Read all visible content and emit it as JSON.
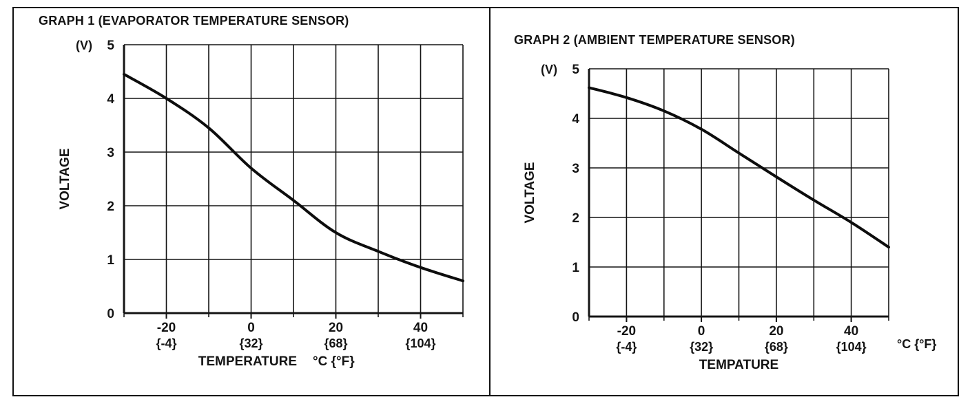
{
  "page": {
    "background": "#ffffff",
    "ink_color": "#141414"
  },
  "panels": [
    {
      "title": "GRAPH 1 (EVAPORATOR TEMPERATURE SENSOR)"
    },
    {
      "title": "GRAPH 2 (AMBIENT TEMPERATURE SENSOR)"
    }
  ],
  "chart_data": [
    {
      "type": "line",
      "title": "GRAPH 1 (EVAPORATOR TEMPERATURE SENSOR)",
      "ylabel": "VOLTAGE",
      "y_unit": "(V)",
      "xlabel": "TEMPERATURE",
      "x_unit": "°C {°F}",
      "unit_position": "label-row",
      "xlim": [
        -30,
        50
      ],
      "ylim": [
        0,
        5
      ],
      "x_grid_step": 10,
      "y_grid_step": 1,
      "grid": true,
      "legend": false,
      "x_ticks": [
        {
          "c": "-20",
          "f": "{-4}"
        },
        {
          "c": "0",
          "f": "{32}"
        },
        {
          "c": "20",
          "f": "{68}"
        },
        {
          "c": "40",
          "f": "{104}"
        }
      ],
      "y_ticks": [
        "0",
        "1",
        "2",
        "3",
        "4",
        "5"
      ],
      "x": [
        -30,
        -20,
        -10,
        0,
        10,
        20,
        30,
        40,
        50
      ],
      "values": [
        4.45,
        4.0,
        3.45,
        2.7,
        2.1,
        1.5,
        1.15,
        0.85,
        0.6
      ]
    },
    {
      "type": "line",
      "title": "GRAPH 2 (AMBIENT TEMPERATURE SENSOR)",
      "ylabel": "VOLTAGE",
      "y_unit": "(V)",
      "xlabel": "TEMPATURE",
      "x_unit": "°C {°F}",
      "unit_position": "axis-right",
      "xlim": [
        -30,
        50
      ],
      "ylim": [
        0,
        5
      ],
      "x_grid_step": 10,
      "y_grid_step": 1,
      "grid": true,
      "legend": false,
      "x_ticks": [
        {
          "c": "-20",
          "f": "{-4}"
        },
        {
          "c": "0",
          "f": "{32}"
        },
        {
          "c": "20",
          "f": "{68}"
        },
        {
          "c": "40",
          "f": "{104}"
        }
      ],
      "y_ticks": [
        "0",
        "1",
        "2",
        "3",
        "4",
        "5"
      ],
      "x": [
        -30,
        -20,
        -10,
        0,
        10,
        20,
        30,
        40,
        50
      ],
      "values": [
        4.62,
        4.42,
        4.15,
        3.78,
        3.3,
        2.82,
        2.35,
        1.9,
        1.4
      ]
    }
  ]
}
